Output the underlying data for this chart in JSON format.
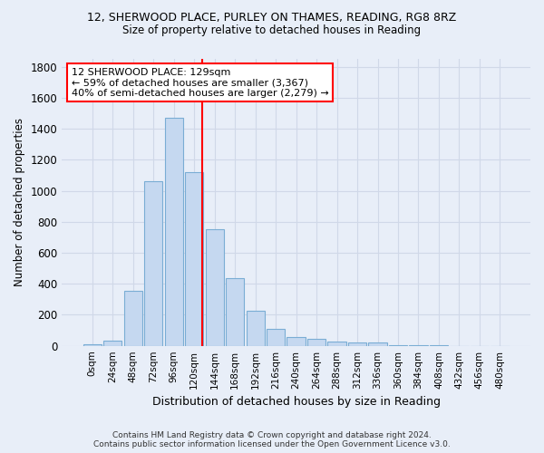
{
  "title_line1": "12, SHERWOOD PLACE, PURLEY ON THAMES, READING, RG8 8RZ",
  "title_line2": "Size of property relative to detached houses in Reading",
  "xlabel": "Distribution of detached houses by size in Reading",
  "ylabel": "Number of detached properties",
  "footer_line1": "Contains HM Land Registry data © Crown copyright and database right 2024.",
  "footer_line2": "Contains public sector information licensed under the Open Government Licence v3.0.",
  "bar_labels": [
    "0sqm",
    "24sqm",
    "48sqm",
    "72sqm",
    "96sqm",
    "120sqm",
    "144sqm",
    "168sqm",
    "192sqm",
    "216sqm",
    "240sqm",
    "264sqm",
    "288sqm",
    "312sqm",
    "336sqm",
    "360sqm",
    "384sqm",
    "408sqm",
    "432sqm",
    "456sqm",
    "480sqm"
  ],
  "bar_values": [
    10,
    35,
    355,
    1060,
    1470,
    1120,
    750,
    435,
    225,
    110,
    55,
    45,
    30,
    20,
    20,
    5,
    5,
    5,
    0,
    0,
    0
  ],
  "bar_color": "#c5d8f0",
  "bar_edge_color": "#7aadd4",
  "grid_color": "#d0d8e8",
  "vline_color": "red",
  "annotation_text": "12 SHERWOOD PLACE: 129sqm\n← 59% of detached houses are smaller (3,367)\n40% of semi-detached houses are larger (2,279) →",
  "annotation_box_color": "white",
  "annotation_box_edge_color": "red",
  "ylim": [
    0,
    1850
  ],
  "yticks": [
    0,
    200,
    400,
    600,
    800,
    1000,
    1200,
    1400,
    1600,
    1800
  ],
  "background_color": "#e8eef8"
}
